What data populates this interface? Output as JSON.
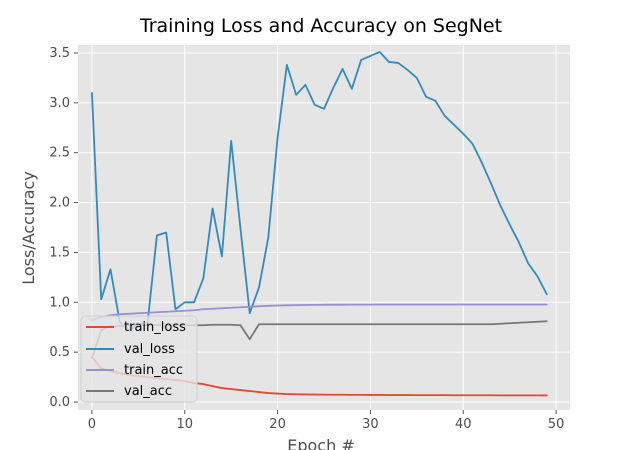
{
  "chart_data": {
    "type": "line",
    "title": "Training Loss and Accuracy on SegNet",
    "xlabel": "Epoch #",
    "ylabel": "Loss/Accuracy",
    "xlim": [
      -1.5,
      51.5
    ],
    "ylim": [
      -0.08,
      3.58
    ],
    "xticks": [
      0,
      10,
      20,
      30,
      40,
      50
    ],
    "yticks": [
      0.0,
      0.5,
      1.0,
      1.5,
      2.0,
      2.5,
      3.0,
      3.5
    ],
    "grid": true,
    "legend_position": "lower-left",
    "background_color": "#e5e5e5",
    "grid_color": "#ffffff",
    "x": [
      0,
      1,
      2,
      3,
      4,
      5,
      6,
      7,
      8,
      9,
      10,
      11,
      12,
      13,
      14,
      15,
      16,
      17,
      18,
      19,
      20,
      21,
      22,
      23,
      24,
      25,
      26,
      27,
      28,
      29,
      30,
      31,
      32,
      33,
      34,
      35,
      36,
      37,
      38,
      39,
      40,
      41,
      42,
      43,
      44,
      45,
      46,
      47,
      48,
      49
    ],
    "series": [
      {
        "name": "train_loss",
        "color": "#e24a33",
        "values": [
          0.45,
          0.34,
          0.31,
          0.29,
          0.27,
          0.26,
          0.25,
          0.24,
          0.23,
          0.22,
          0.21,
          0.19,
          0.18,
          0.16,
          0.14,
          0.13,
          0.12,
          0.11,
          0.1,
          0.09,
          0.085,
          0.08,
          0.078,
          0.076,
          0.075,
          0.074,
          0.073,
          0.073,
          0.072,
          0.072,
          0.071,
          0.071,
          0.07,
          0.07,
          0.07,
          0.069,
          0.069,
          0.069,
          0.069,
          0.068,
          0.068,
          0.068,
          0.068,
          0.068,
          0.067,
          0.067,
          0.067,
          0.067,
          0.067,
          0.066
        ]
      },
      {
        "name": "val_loss",
        "color": "#348abd",
        "values": [
          3.1,
          1.03,
          1.33,
          0.8,
          0.72,
          0.78,
          0.8,
          1.67,
          1.7,
          0.93,
          1.0,
          1.0,
          1.24,
          1.94,
          1.46,
          2.62,
          1.74,
          0.89,
          1.15,
          1.65,
          2.65,
          3.38,
          3.08,
          3.18,
          2.98,
          2.94,
          3.15,
          3.34,
          3.14,
          3.43,
          3.47,
          3.51,
          3.41,
          3.4,
          3.33,
          3.25,
          3.06,
          3.02,
          2.87,
          2.78,
          2.69,
          2.59,
          2.4,
          2.19,
          1.97,
          1.78,
          1.6,
          1.39,
          1.26,
          1.08
        ]
      },
      {
        "name": "train_acc",
        "color": "#988ed5",
        "values": [
          0.82,
          0.85,
          0.87,
          0.88,
          0.885,
          0.89,
          0.895,
          0.9,
          0.905,
          0.91,
          0.915,
          0.92,
          0.93,
          0.935,
          0.94,
          0.945,
          0.95,
          0.955,
          0.96,
          0.965,
          0.968,
          0.97,
          0.972,
          0.973,
          0.974,
          0.975,
          0.976,
          0.976,
          0.977,
          0.977,
          0.977,
          0.978,
          0.978,
          0.978,
          0.978,
          0.978,
          0.978,
          0.978,
          0.978,
          0.978,
          0.978,
          0.978,
          0.978,
          0.978,
          0.978,
          0.978,
          0.978,
          0.978,
          0.978,
          0.978
        ]
      },
      {
        "name": "val_acc",
        "color": "#777777",
        "values": [
          0.44,
          0.72,
          0.76,
          0.76,
          0.77,
          0.77,
          0.77,
          0.77,
          0.77,
          0.77,
          0.77,
          0.77,
          0.77,
          0.775,
          0.775,
          0.775,
          0.77,
          0.63,
          0.78,
          0.78,
          0.78,
          0.78,
          0.78,
          0.78,
          0.78,
          0.78,
          0.78,
          0.78,
          0.78,
          0.78,
          0.78,
          0.78,
          0.78,
          0.78,
          0.78,
          0.78,
          0.78,
          0.78,
          0.78,
          0.78,
          0.78,
          0.78,
          0.78,
          0.78,
          0.785,
          0.79,
          0.795,
          0.8,
          0.805,
          0.81
        ]
      }
    ]
  }
}
